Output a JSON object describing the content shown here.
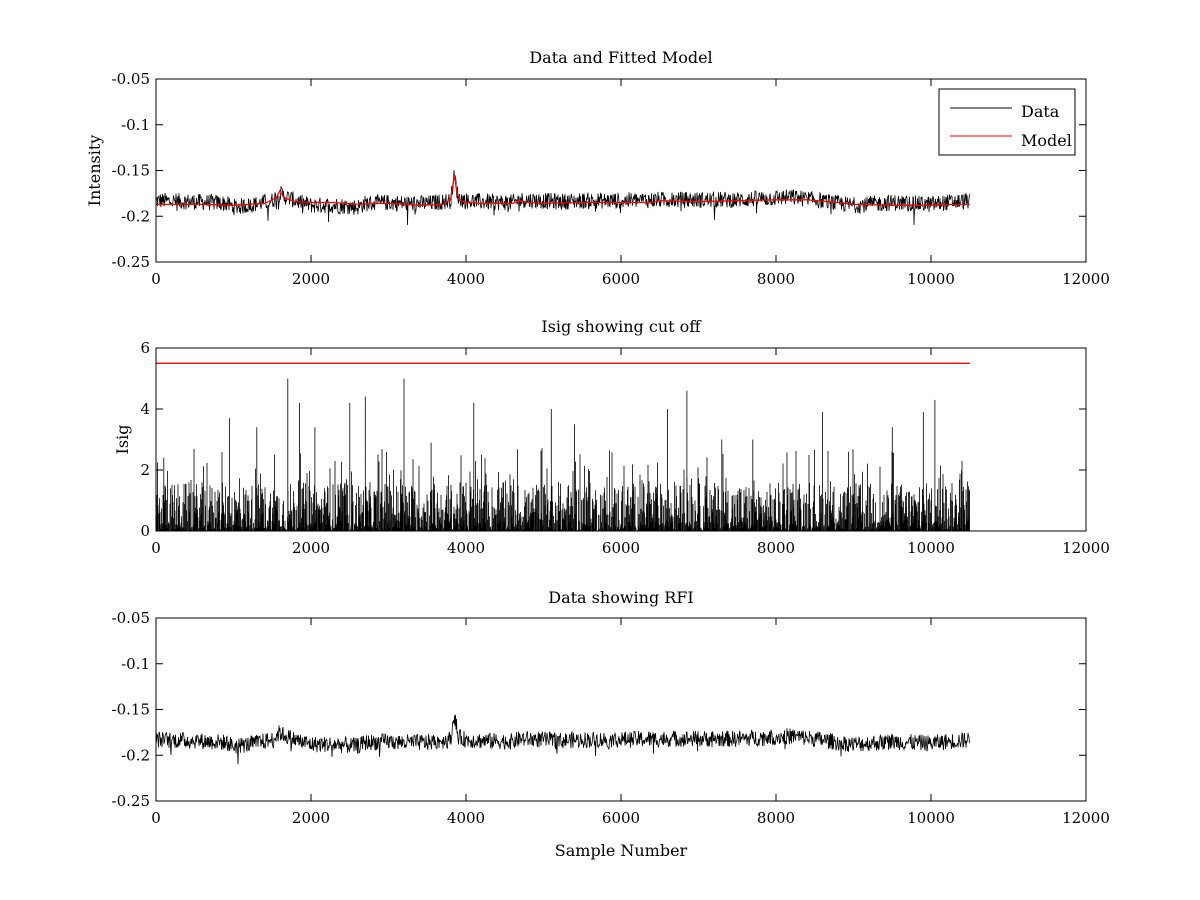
{
  "chart_data": [
    {
      "type": "line",
      "title": "Data and Fitted Model",
      "xlabel": "",
      "ylabel": "Intensity",
      "xlim": [
        0,
        12000
      ],
      "ylim": [
        -0.25,
        -0.05
      ],
      "xticks": [
        0,
        2000,
        4000,
        6000,
        8000,
        10000,
        12000
      ],
      "yticks": [
        -0.25,
        -0.2,
        -0.15,
        -0.1,
        -0.05
      ],
      "ytick_labels": [
        "-0.25",
        "-0.2",
        "-0.15",
        "-0.1",
        "-0.05"
      ],
      "grid": false,
      "legend": "top-right",
      "series": [
        {
          "name": "Data",
          "color": "#000000",
          "style": "noise",
          "x": [
            0,
            500,
            900,
            1000,
            1200,
            1500,
            1600,
            1650,
            1800,
            2000,
            2300,
            2600,
            2700,
            3000,
            3200,
            3500,
            3800,
            3850,
            3900,
            4000,
            4200,
            4600,
            4700,
            5000,
            5200,
            5500,
            6000,
            6500,
            7000,
            7500,
            8000,
            8200,
            8500,
            8800,
            9000,
            9500,
            10000,
            10200,
            10500
          ],
          "y": [
            -0.183,
            -0.184,
            -0.186,
            -0.19,
            -0.188,
            -0.183,
            -0.175,
            -0.178,
            -0.183,
            -0.188,
            -0.188,
            -0.19,
            -0.186,
            -0.185,
            -0.186,
            -0.186,
            -0.183,
            -0.155,
            -0.18,
            -0.183,
            -0.184,
            -0.185,
            -0.182,
            -0.183,
            -0.184,
            -0.183,
            -0.183,
            -0.182,
            -0.182,
            -0.182,
            -0.18,
            -0.179,
            -0.182,
            -0.186,
            -0.188,
            -0.185,
            -0.187,
            -0.185,
            -0.183
          ],
          "noise_amplitude": 0.009,
          "spike_amplitude": 0.02
        },
        {
          "name": "Model",
          "color": "#ff0000",
          "style": "line",
          "x": [
            0,
            600,
            1000,
            1200,
            1400,
            1550,
            1600,
            1650,
            1800,
            2000,
            2300,
            2600,
            2800,
            3000,
            3400,
            3700,
            3800,
            3850,
            3880,
            3920,
            4000,
            4200,
            4400,
            4600,
            4700,
            4800,
            5000,
            5500,
            6000,
            6400,
            6500,
            7000,
            7500,
            8000,
            8400,
            8800,
            9000,
            9500,
            10000,
            10200,
            10500
          ],
          "y": [
            -0.187,
            -0.187,
            -0.188,
            -0.187,
            -0.186,
            -0.18,
            -0.172,
            -0.18,
            -0.184,
            -0.185,
            -0.185,
            -0.187,
            -0.186,
            -0.186,
            -0.188,
            -0.187,
            -0.182,
            -0.155,
            -0.173,
            -0.183,
            -0.185,
            -0.186,
            -0.186,
            -0.186,
            -0.183,
            -0.185,
            -0.186,
            -0.185,
            -0.185,
            -0.185,
            -0.183,
            -0.184,
            -0.183,
            -0.182,
            -0.182,
            -0.185,
            -0.187,
            -0.188,
            -0.188,
            -0.187,
            -0.187
          ]
        }
      ]
    },
    {
      "type": "line",
      "title": "Isig showing cut off",
      "xlabel": "",
      "ylabel": "Isig",
      "xlim": [
        0,
        12000
      ],
      "ylim": [
        0,
        6
      ],
      "xticks": [
        0,
        2000,
        4000,
        6000,
        8000,
        10000,
        12000
      ],
      "yticks": [
        0,
        2,
        4,
        6
      ],
      "ytick_labels": [
        "0",
        "2",
        "4",
        "6"
      ],
      "grid": false,
      "series": [
        {
          "color": "#000000",
          "style": "spikes",
          "x_range": [
            0,
            10500
          ],
          "typical_max": 1.6,
          "peaks": [
            {
              "x": 100,
              "y": 2.4
            },
            {
              "x": 950,
              "y": 3.7
            },
            {
              "x": 1300,
              "y": 3.4
            },
            {
              "x": 1700,
              "y": 5.0
            },
            {
              "x": 1850,
              "y": 4.2
            },
            {
              "x": 2050,
              "y": 3.4
            },
            {
              "x": 2500,
              "y": 4.2
            },
            {
              "x": 2700,
              "y": 4.4
            },
            {
              "x": 3200,
              "y": 5.0
            },
            {
              "x": 3550,
              "y": 2.9
            },
            {
              "x": 4100,
              "y": 4.2
            },
            {
              "x": 5100,
              "y": 4.0
            },
            {
              "x": 5400,
              "y": 3.5
            },
            {
              "x": 6600,
              "y": 4.0
            },
            {
              "x": 6850,
              "y": 4.6
            },
            {
              "x": 7300,
              "y": 3.0
            },
            {
              "x": 7700,
              "y": 3.0
            },
            {
              "x": 8600,
              "y": 3.9
            },
            {
              "x": 9500,
              "y": 3.4
            },
            {
              "x": 9900,
              "y": 3.9
            },
            {
              "x": 10050,
              "y": 4.3
            },
            {
              "x": 10400,
              "y": 2.3
            }
          ]
        },
        {
          "color": "#ff0000",
          "style": "line",
          "x": [
            0,
            10500
          ],
          "y": [
            5.5,
            5.5
          ]
        }
      ]
    },
    {
      "type": "line",
      "title": "Data showing RFI",
      "xlabel": "Sample Number",
      "ylabel": "",
      "xlim": [
        0,
        12000
      ],
      "ylim": [
        -0.25,
        -0.05
      ],
      "xticks": [
        0,
        2000,
        4000,
        6000,
        8000,
        10000,
        12000
      ],
      "yticks": [
        -0.25,
        -0.2,
        -0.15,
        -0.1,
        -0.05
      ],
      "ytick_labels": [
        "-0.25",
        "-0.2",
        "-0.15",
        "-0.1",
        "-0.05"
      ],
      "grid": false,
      "series": [
        {
          "color": "#000000",
          "style": "noise",
          "x": [
            0,
            500,
            900,
            1000,
            1200,
            1500,
            1600,
            1650,
            1800,
            2000,
            2300,
            2600,
            2700,
            3000,
            3200,
            3500,
            3800,
            3850,
            3900,
            4000,
            4200,
            4600,
            4700,
            5000,
            5200,
            5500,
            6000,
            6500,
            7000,
            7500,
            8000,
            8200,
            8500,
            8800,
            9000,
            9500,
            10000,
            10200,
            10500
          ],
          "y": [
            -0.183,
            -0.184,
            -0.186,
            -0.19,
            -0.188,
            -0.183,
            -0.175,
            -0.178,
            -0.183,
            -0.188,
            -0.188,
            -0.19,
            -0.186,
            -0.185,
            -0.186,
            -0.186,
            -0.183,
            -0.155,
            -0.18,
            -0.183,
            -0.184,
            -0.185,
            -0.182,
            -0.183,
            -0.184,
            -0.183,
            -0.183,
            -0.182,
            -0.182,
            -0.182,
            -0.18,
            -0.179,
            -0.182,
            -0.186,
            -0.188,
            -0.185,
            -0.187,
            -0.185,
            -0.183
          ],
          "noise_amplitude": 0.009,
          "spike_amplitude": 0.02
        }
      ]
    }
  ]
}
